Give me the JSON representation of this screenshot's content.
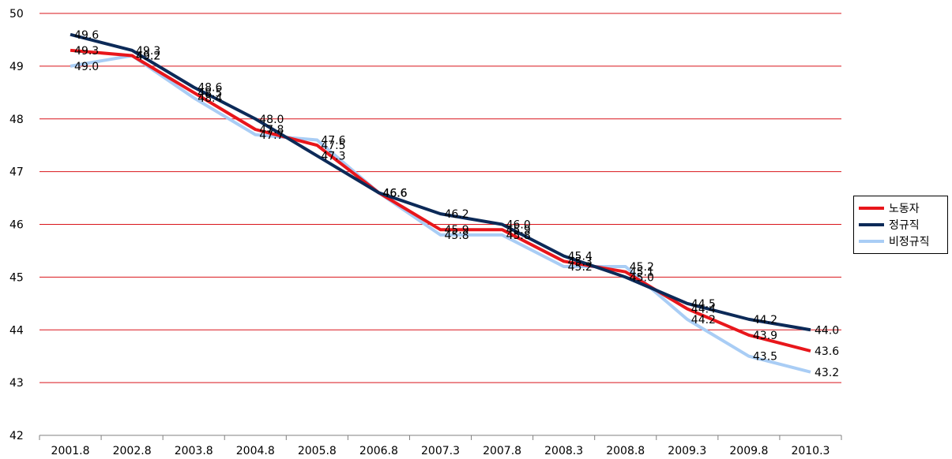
{
  "chart_data": {
    "type": "line",
    "categories": [
      "2001.8",
      "2002.8",
      "2003.8",
      "2004.8",
      "2005.8",
      "2006.8",
      "2007.3",
      "2007.8",
      "2008.3",
      "2008.8",
      "2009.3",
      "2009.8",
      "2010.3"
    ],
    "ylim": [
      42,
      50
    ],
    "yticks": [
      "42",
      "43",
      "44",
      "45",
      "46",
      "47",
      "48",
      "49",
      "50"
    ],
    "grid": true,
    "legend_position": "right",
    "series": [
      {
        "name": "노동자",
        "color": "#e8161b",
        "values": [
          49.3,
          49.2,
          48.5,
          47.8,
          47.5,
          46.6,
          45.9,
          45.9,
          45.3,
          45.1,
          44.4,
          43.9,
          43.6
        ],
        "labels": [
          "49.3",
          "49.2",
          "48.5",
          "47.8",
          "47.5",
          "46.6",
          "45.9",
          "45.9",
          "45.3",
          "45.1",
          "44.4",
          "43.9",
          "43.6"
        ]
      },
      {
        "name": "정규직",
        "color": "#0c2a58",
        "values": [
          49.6,
          49.3,
          48.6,
          48.0,
          47.3,
          46.6,
          46.2,
          46.0,
          45.4,
          45.0,
          44.5,
          44.2,
          44.0
        ],
        "labels": [
          "49.6",
          "49.3",
          "48.6",
          "48.0",
          "47.3",
          "46.6",
          "46.2",
          "46.0",
          "45.4",
          "45.0",
          "44.5",
          "44.2",
          "44.0"
        ]
      },
      {
        "name": "비정규직",
        "color": "#a9cdf5",
        "values": [
          49.0,
          49.2,
          48.4,
          47.7,
          47.6,
          46.6,
          45.8,
          45.8,
          45.2,
          45.2,
          44.2,
          43.5,
          43.2
        ],
        "labels": [
          "49.0",
          "49.2",
          "48.4",
          "47.7",
          "47.6",
          "46.6",
          "45.8",
          "45.8",
          "45.2",
          "45.2",
          "44.2",
          "43.5",
          "43.2"
        ]
      }
    ]
  }
}
